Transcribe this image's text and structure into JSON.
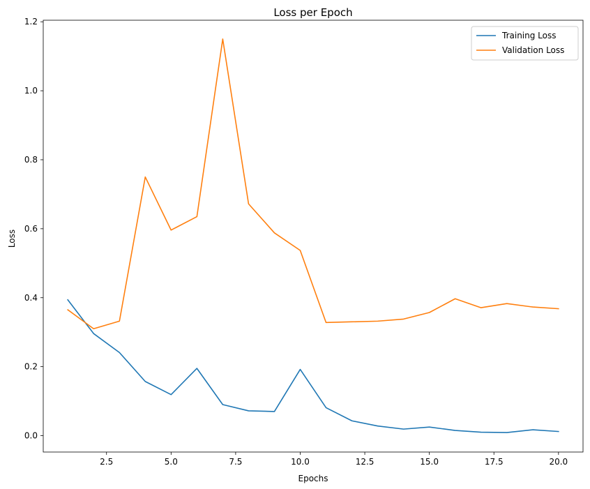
{
  "chart_data": {
    "type": "line",
    "title": "Loss per Epoch",
    "xlabel": "Epochs",
    "ylabel": "Loss",
    "xlim": [
      0.05,
      20.95
    ],
    "ylim": [
      -0.0475,
      1.2045
    ],
    "xticks": [
      2.5,
      5.0,
      7.5,
      10.0,
      12.5,
      15.0,
      17.5,
      20.0
    ],
    "xtick_labels": [
      "2.5",
      "5.0",
      "7.5",
      "10.0",
      "12.5",
      "15.0",
      "17.5",
      "20.0"
    ],
    "yticks": [
      0.0,
      0.2,
      0.4,
      0.6,
      0.8,
      1.0,
      1.2
    ],
    "ytick_labels": [
      "0.0",
      "0.2",
      "0.4",
      "0.6",
      "0.8",
      "1.0",
      "1.2"
    ],
    "grid": false,
    "legend_position": "top-right",
    "x": [
      1,
      2,
      3,
      4,
      5,
      6,
      7,
      8,
      9,
      10,
      11,
      12,
      13,
      14,
      15,
      16,
      17,
      18,
      19,
      20
    ],
    "series": [
      {
        "name": "Training Loss",
        "color": "#1f77b4",
        "values": [
          0.394,
          0.296,
          0.241,
          0.157,
          0.119,
          0.195,
          0.09,
          0.072,
          0.07,
          0.192,
          0.081,
          0.043,
          0.028,
          0.019,
          0.025,
          0.015,
          0.01,
          0.009,
          0.017,
          0.012
        ]
      },
      {
        "name": "Validation Loss",
        "color": "#ff7f0e",
        "values": [
          0.365,
          0.31,
          0.332,
          0.75,
          0.596,
          0.635,
          1.15,
          0.672,
          0.588,
          0.537,
          0.328,
          0.33,
          0.332,
          0.338,
          0.357,
          0.397,
          0.371,
          0.383,
          0.373,
          0.368
        ]
      }
    ]
  }
}
